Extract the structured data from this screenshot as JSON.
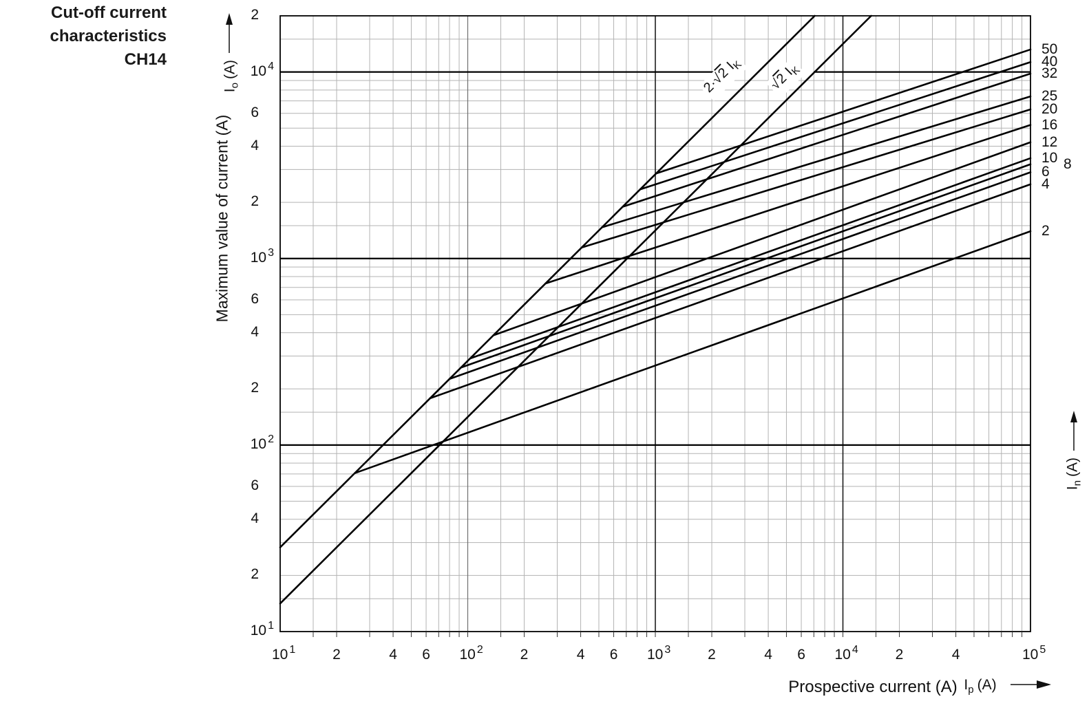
{
  "title": {
    "line1": "Cut-off current",
    "line2": "characteristics",
    "line3": "CH14"
  },
  "axis_symbols": {
    "output_current": {
      "base": "I",
      "sub": "o",
      "unit": "(A)"
    },
    "prospective_current": {
      "base": "I",
      "sub": "p",
      "unit": "(A)"
    },
    "rated_current": {
      "base": "I",
      "sub": "n",
      "unit": "(A)"
    }
  },
  "chart_data": {
    "type": "line",
    "title": "Cut-off current characteristics CH14",
    "grid": true,
    "x_axis": {
      "label": "Prospective current (A)",
      "symbol": "Ip (A)",
      "scale": "log",
      "min": 10,
      "max": 100000
    },
    "y_axis": {
      "label": "Maximum value of current (A)",
      "symbol": "Io (A)",
      "scale": "log",
      "min": 10,
      "max": 20000
    },
    "right_axis_symbol": "In (A)",
    "x_ticks": [
      {
        "v": 10,
        "base": "10",
        "exp": "1"
      },
      {
        "v": 20,
        "t": "2"
      },
      {
        "v": 40,
        "t": "4"
      },
      {
        "v": 60,
        "t": "6"
      },
      {
        "v": 100,
        "base": "10",
        "exp": "2"
      },
      {
        "v": 200,
        "t": "2"
      },
      {
        "v": 400,
        "t": "4"
      },
      {
        "v": 600,
        "t": "6"
      },
      {
        "v": 1000,
        "base": "10",
        "exp": "3"
      },
      {
        "v": 2000,
        "t": "2"
      },
      {
        "v": 4000,
        "t": "4"
      },
      {
        "v": 6000,
        "t": "6"
      },
      {
        "v": 10000,
        "base": "10",
        "exp": "4"
      },
      {
        "v": 20000,
        "t": "2"
      },
      {
        "v": 40000,
        "t": "4"
      },
      {
        "v": 100000,
        "base": "10",
        "exp": "5"
      }
    ],
    "y_ticks": [
      {
        "v": 10,
        "base": "10",
        "exp": "1"
      },
      {
        "v": 20,
        "t": "2"
      },
      {
        "v": 40,
        "t": "4"
      },
      {
        "v": 60,
        "t": "6"
      },
      {
        "v": 100,
        "base": "10",
        "exp": "2"
      },
      {
        "v": 200,
        "t": "2"
      },
      {
        "v": 400,
        "t": "4"
      },
      {
        "v": 600,
        "t": "6"
      },
      {
        "v": 1000,
        "base": "10",
        "exp": "3"
      },
      {
        "v": 2000,
        "t": "2"
      },
      {
        "v": 4000,
        "t": "4"
      },
      {
        "v": 6000,
        "t": "6"
      },
      {
        "v": 10000,
        "base": "10",
        "exp": "4"
      },
      {
        "v": 20000,
        "t": "2"
      }
    ],
    "minor_grid_steps": [
      1.5,
      2,
      3,
      4,
      5,
      6,
      7,
      8,
      9
    ],
    "heavy_horizontal_lines": [
      100,
      1000,
      10000
    ],
    "heavy_vertical_lines": [
      1000,
      10000
    ],
    "asymptote_lines": [
      {
        "label": "2·√2 IK",
        "factor": 2.828,
        "display": {
          "pre": "2·",
          "rad": "2",
          "tail": "I",
          "sub": "K"
        }
      },
      {
        "label": "√2 IK",
        "factor": 1.414,
        "display": {
          "pre": "",
          "rad": "2",
          "tail": "I",
          "sub": "K"
        }
      }
    ],
    "fuse_curves": [
      {
        "rating_a": 2,
        "branch_prospective_a": 25,
        "cutoff_at_100k_a": 1400,
        "label_offset_right": false
      },
      {
        "rating_a": 4,
        "branch_prospective_a": 63,
        "cutoff_at_100k_a": 2500,
        "label_offset_right": false
      },
      {
        "rating_a": 6,
        "branch_prospective_a": 80,
        "cutoff_at_100k_a": 2900,
        "label_offset_right": false
      },
      {
        "rating_a": 8,
        "branch_prospective_a": 92,
        "cutoff_at_100k_a": 3200,
        "label_offset_right": true
      },
      {
        "rating_a": 10,
        "branch_prospective_a": 103,
        "cutoff_at_100k_a": 3450,
        "label_offset_right": false
      },
      {
        "rating_a": 12,
        "branch_prospective_a": 137,
        "cutoff_at_100k_a": 4200,
        "label_offset_right": false
      },
      {
        "rating_a": 16,
        "branch_prospective_a": 260,
        "cutoff_at_100k_a": 5200,
        "label_offset_right": false
      },
      {
        "rating_a": 20,
        "branch_prospective_a": 405,
        "cutoff_at_100k_a": 6300,
        "label_offset_right": false
      },
      {
        "rating_a": 25,
        "branch_prospective_a": 520,
        "cutoff_at_100k_a": 7400,
        "label_offset_right": false
      },
      {
        "rating_a": 32,
        "branch_prospective_a": 670,
        "cutoff_at_100k_a": 9800,
        "label_offset_right": false
      },
      {
        "rating_a": 40,
        "branch_prospective_a": 830,
        "cutoff_at_100k_a": 11300,
        "label_offset_right": false
      },
      {
        "rating_a": 50,
        "branch_prospective_a": 1010,
        "cutoff_at_100k_a": 13200,
        "label_offset_right": false
      }
    ]
  }
}
